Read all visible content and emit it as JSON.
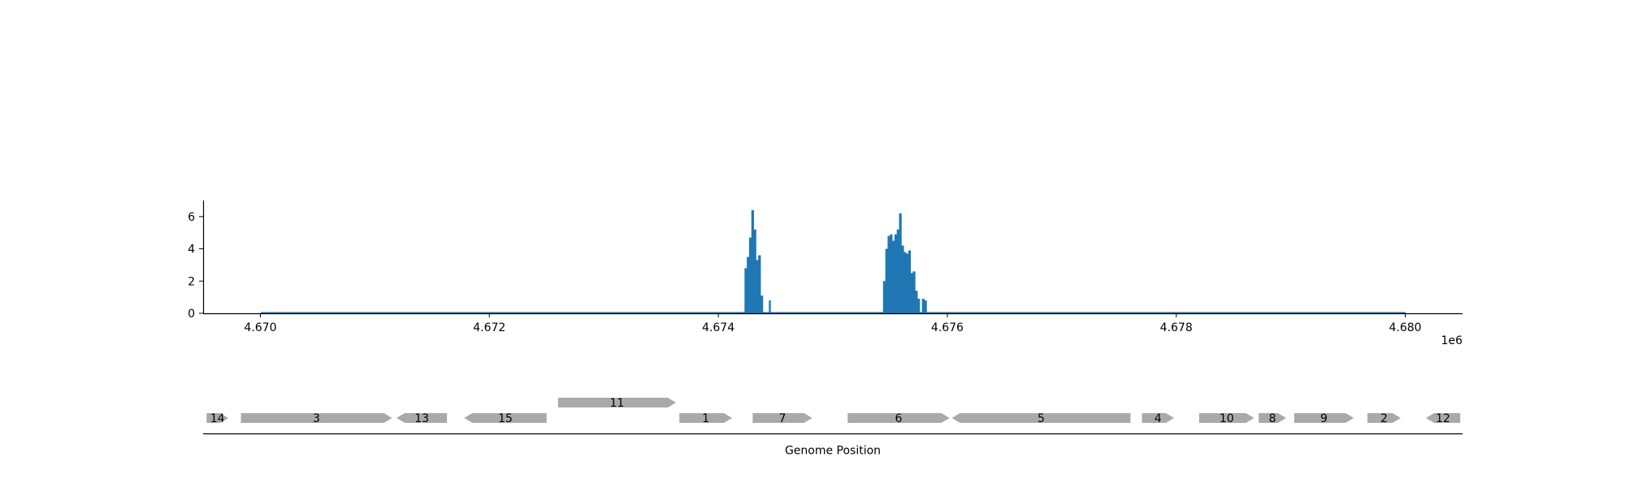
{
  "chart_data": [
    {
      "type": "area",
      "title": "",
      "xlabel": "",
      "ylabel": "",
      "x_offset_label": "1e6",
      "xlim": [
        4.6695,
        4.6805
      ],
      "ylim": [
        0,
        7
      ],
      "x_ticks": [
        4.67,
        4.672,
        4.674,
        4.676,
        4.678,
        4.68
      ],
      "x_tick_labels": [
        "4.670",
        "4.672",
        "4.674",
        "4.676",
        "4.678",
        "4.680"
      ],
      "y_ticks": [
        0,
        2,
        4,
        6
      ],
      "y_tick_labels": [
        "0",
        "2",
        "4",
        "6"
      ],
      "baseline_range": [
        4.67,
        4.68
      ],
      "color": "#1f77b4",
      "grid": false,
      "series": [
        {
          "x": [
            4.67424,
            4.67426,
            4.67428,
            4.6743,
            4.67432,
            4.67434,
            4.67436,
            4.67438,
            4.6744,
            4.67545,
            4.67547,
            4.67549,
            4.67551,
            4.67553,
            4.67555,
            4.67557,
            4.67559,
            4.67561,
            4.67563,
            4.67565,
            4.67567,
            4.67569,
            4.67571,
            4.67573,
            4.67575,
            4.67577,
            4.67579,
            4.67581
          ],
          "y": [
            2.8,
            3.5,
            4.7,
            6.4,
            5.2,
            3.3,
            3.6,
            1.1,
            0.0,
            2.0,
            4.0,
            4.8,
            4.9,
            4.5,
            4.9,
            5.2,
            6.2,
            4.2,
            3.8,
            3.7,
            3.9,
            2.5,
            2.6,
            1.4,
            0.9,
            0.0,
            0.9,
            0.8
          ]
        }
      ],
      "spikes": [
        {
          "x": 4.67445,
          "y": 0.8
        }
      ]
    },
    {
      "type": "diagram",
      "xlabel": "Genome Position",
      "color": "#a9a9a9",
      "genes": [
        {
          "label": "14",
          "start": 4.66953,
          "end": 4.66972,
          "strand": "+",
          "row": 0
        },
        {
          "label": "3",
          "start": 4.66983,
          "end": 4.67115,
          "strand": "+",
          "row": 0
        },
        {
          "label": "13",
          "start": 4.67119,
          "end": 4.67163,
          "strand": "-",
          "row": 0
        },
        {
          "label": "15",
          "start": 4.67178,
          "end": 4.6725,
          "strand": "-",
          "row": 0
        },
        {
          "label": "11",
          "start": 4.6726,
          "end": 4.67363,
          "strand": "+",
          "row": 1
        },
        {
          "label": "1",
          "start": 4.67366,
          "end": 4.67412,
          "strand": "+",
          "row": 0
        },
        {
          "label": "7",
          "start": 4.6743,
          "end": 4.67482,
          "strand": "+",
          "row": 0
        },
        {
          "label": "6",
          "start": 4.67513,
          "end": 4.67602,
          "strand": "+",
          "row": 0
        },
        {
          "label": "5",
          "start": 4.67604,
          "end": 4.6776,
          "strand": "-",
          "row": 0
        },
        {
          "label": "4",
          "start": 4.6777,
          "end": 4.67798,
          "strand": "+",
          "row": 0
        },
        {
          "label": "10",
          "start": 4.6782,
          "end": 4.67868,
          "strand": "+",
          "row": 0
        },
        {
          "label": "8",
          "start": 4.67872,
          "end": 4.67896,
          "strand": "+",
          "row": 0
        },
        {
          "label": "9",
          "start": 4.67903,
          "end": 4.67955,
          "strand": "+",
          "row": 0
        },
        {
          "label": "2",
          "start": 4.67967,
          "end": 4.67996,
          "strand": "+",
          "row": 0
        },
        {
          "label": "12",
          "start": 4.68018,
          "end": 4.68048,
          "strand": "-",
          "row": 0
        }
      ]
    }
  ]
}
